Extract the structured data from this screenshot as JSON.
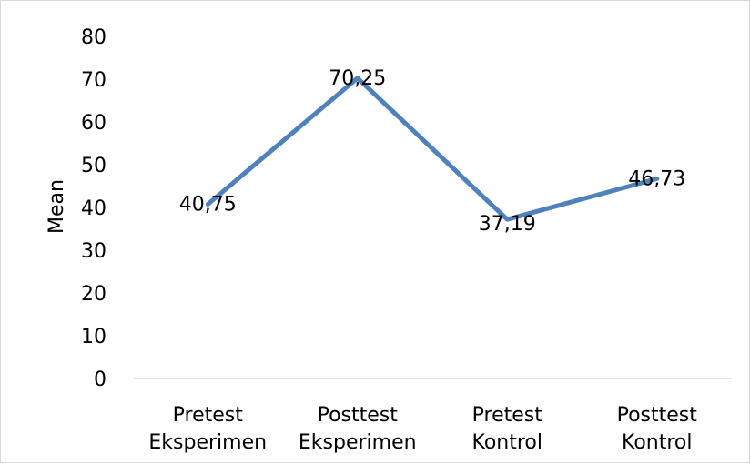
{
  "chart_data": {
    "type": "line",
    "title": "",
    "xlabel": "",
    "ylabel": "Mean",
    "ylim": [
      0,
      80
    ],
    "yticks": [
      0,
      10,
      20,
      30,
      40,
      50,
      60,
      70,
      80
    ],
    "grid": false,
    "legend": "none",
    "categories": [
      [
        "Pretest",
        "Eksperimen"
      ],
      [
        "Posttest",
        "Eksperimen"
      ],
      [
        "Pretest",
        "Kontrol"
      ],
      [
        "Posttest",
        "Kontrol"
      ]
    ],
    "values": [
      40.75,
      70.25,
      37.19,
      46.73
    ],
    "data_labels": [
      "40,75",
      "70,25",
      "37,19",
      "46,73"
    ],
    "line_color": "#4f81bd"
  }
}
